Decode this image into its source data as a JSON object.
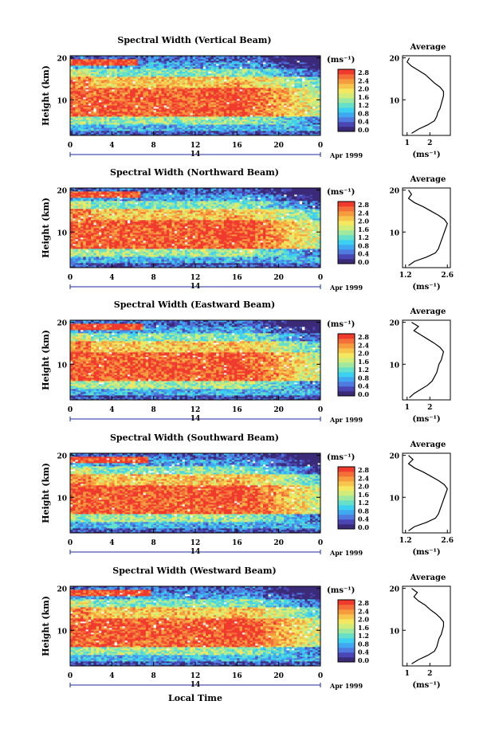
{
  "figure": {
    "x_axis_label": "Local Time",
    "y_axis_label": "Height (km)",
    "date_label": "Apr 1999",
    "day_marker": "14",
    "colorbar_unit": "(ms⁻¹)",
    "colorbar_ticks": [
      "2.8",
      "2.4",
      "2.0",
      "1.6",
      "1.2",
      "0.8",
      "0.4",
      "0.0"
    ],
    "average_title": "Average",
    "average_xlabel": "(ms⁻¹)",
    "colormap": [
      "#3a2a78",
      "#4a46b4",
      "#4f7ae0",
      "#3fa8f0",
      "#3ed0f0",
      "#66e0c8",
      "#9ee8a0",
      "#d2ec7a",
      "#f4e860",
      "#f7c44c",
      "#f59c3e",
      "#f46e3a",
      "#f03a2e"
    ]
  },
  "chart_data": [
    {
      "type": "heatmap",
      "title": "Spectral Width (Vertical Beam)",
      "xlabel": "Local Time",
      "ylabel": "Height (km)",
      "x_ticks": [
        "0",
        "4",
        "8",
        "12",
        "16",
        "20",
        "0"
      ],
      "y_ticks": [
        "20",
        "10"
      ],
      "xlim": [
        0,
        24
      ],
      "ylim": [
        1.5,
        20.5
      ],
      "color_range": [
        0.0,
        3.0
      ],
      "average_profile": {
        "x_ticks": [
          "1",
          "2"
        ],
        "xlim": [
          0.8,
          2.9
        ],
        "heights": [
          2,
          3,
          4,
          5,
          6,
          7,
          8,
          9,
          10,
          11,
          12,
          13,
          14,
          15,
          16,
          17,
          18,
          19,
          20
        ],
        "values": [
          1.2,
          1.5,
          1.9,
          2.2,
          2.3,
          2.35,
          2.45,
          2.5,
          2.55,
          2.6,
          2.6,
          2.45,
          2.2,
          2.0,
          1.8,
          1.5,
          1.2,
          1.0,
          1.1
        ]
      }
    },
    {
      "type": "heatmap",
      "title": "Spectral Width (Northward Beam)",
      "xlabel": "Local Time",
      "ylabel": "Height (km)",
      "x_ticks": [
        "0",
        "4",
        "8",
        "12",
        "16",
        "20",
        "0"
      ],
      "y_ticks": [
        "20",
        "10"
      ],
      "xlim": [
        0,
        24
      ],
      "ylim": [
        1.5,
        20.5
      ],
      "color_range": [
        0.0,
        3.0
      ],
      "average_profile": {
        "x_ticks": [
          "1.2",
          "2.6"
        ],
        "xlim": [
          1.1,
          2.7
        ],
        "heights": [
          2,
          3,
          4,
          5,
          6,
          7,
          8,
          9,
          10,
          11,
          12,
          13,
          14,
          15,
          16,
          17,
          18,
          19,
          20
        ],
        "values": [
          1.3,
          1.5,
          1.9,
          2.2,
          2.3,
          2.35,
          2.4,
          2.45,
          2.5,
          2.55,
          2.6,
          2.5,
          2.3,
          2.05,
          1.8,
          1.5,
          1.3,
          1.4,
          1.3
        ]
      }
    },
    {
      "type": "heatmap",
      "title": "Spectral Width (Eastward Beam)",
      "xlabel": "Local Time",
      "ylabel": "Height (km)",
      "x_ticks": [
        "0",
        "4",
        "8",
        "12",
        "16",
        "20",
        "0"
      ],
      "y_ticks": [
        "20",
        "10"
      ],
      "xlim": [
        0,
        24
      ],
      "ylim": [
        1.5,
        20.5
      ],
      "color_range": [
        0.0,
        3.0
      ],
      "average_profile": {
        "x_ticks": [
          "1",
          "2"
        ],
        "xlim": [
          0.8,
          2.9
        ],
        "heights": [
          2,
          3,
          4,
          5,
          6,
          7,
          8,
          9,
          10,
          11,
          12,
          13,
          14,
          15,
          16,
          17,
          18,
          19,
          20
        ],
        "values": [
          1.1,
          1.3,
          1.6,
          1.9,
          2.1,
          2.2,
          2.3,
          2.35,
          2.4,
          2.5,
          2.55,
          2.6,
          2.45,
          2.2,
          1.9,
          1.6,
          1.3,
          1.5,
          1.2
        ]
      }
    },
    {
      "type": "heatmap",
      "title": "Spectral Width (Southward Beam)",
      "xlabel": "Local Time",
      "ylabel": "Height (km)",
      "x_ticks": [
        "0",
        "4",
        "8",
        "12",
        "16",
        "20",
        "0"
      ],
      "y_ticks": [
        "20",
        "10"
      ],
      "xlim": [
        0,
        24
      ],
      "ylim": [
        1.5,
        20.5
      ],
      "color_range": [
        0.0,
        3.0
      ],
      "average_profile": {
        "x_ticks": [
          "1.2",
          "2.6"
        ],
        "xlim": [
          1.1,
          2.7
        ],
        "heights": [
          2,
          3,
          4,
          5,
          6,
          7,
          8,
          9,
          10,
          11,
          12,
          13,
          14,
          15,
          16,
          17,
          18,
          19,
          20
        ],
        "values": [
          1.3,
          1.5,
          1.9,
          2.2,
          2.3,
          2.35,
          2.4,
          2.45,
          2.5,
          2.55,
          2.6,
          2.5,
          2.3,
          2.05,
          1.8,
          1.5,
          1.3,
          1.45,
          1.3
        ]
      }
    },
    {
      "type": "heatmap",
      "title": "Spectral Width (Westward Beam)",
      "xlabel": "Local Time",
      "ylabel": "Height (km)",
      "x_ticks": [
        "0",
        "4",
        "8",
        "12",
        "16",
        "20",
        "0"
      ],
      "y_ticks": [
        "20",
        "10"
      ],
      "xlim": [
        0,
        24
      ],
      "ylim": [
        1.5,
        20.5
      ],
      "color_range": [
        0.0,
        3.0
      ],
      "average_profile": {
        "x_ticks": [
          "1",
          "2"
        ],
        "xlim": [
          0.8,
          2.9
        ],
        "heights": [
          2,
          3,
          4,
          5,
          6,
          7,
          8,
          9,
          10,
          11,
          12,
          13,
          14,
          15,
          16,
          17,
          18,
          19,
          20
        ],
        "values": [
          1.2,
          1.5,
          1.9,
          2.2,
          2.3,
          2.35,
          2.4,
          2.5,
          2.55,
          2.6,
          2.6,
          2.45,
          2.25,
          2.0,
          1.8,
          1.5,
          1.3,
          1.45,
          1.2
        ]
      }
    }
  ]
}
